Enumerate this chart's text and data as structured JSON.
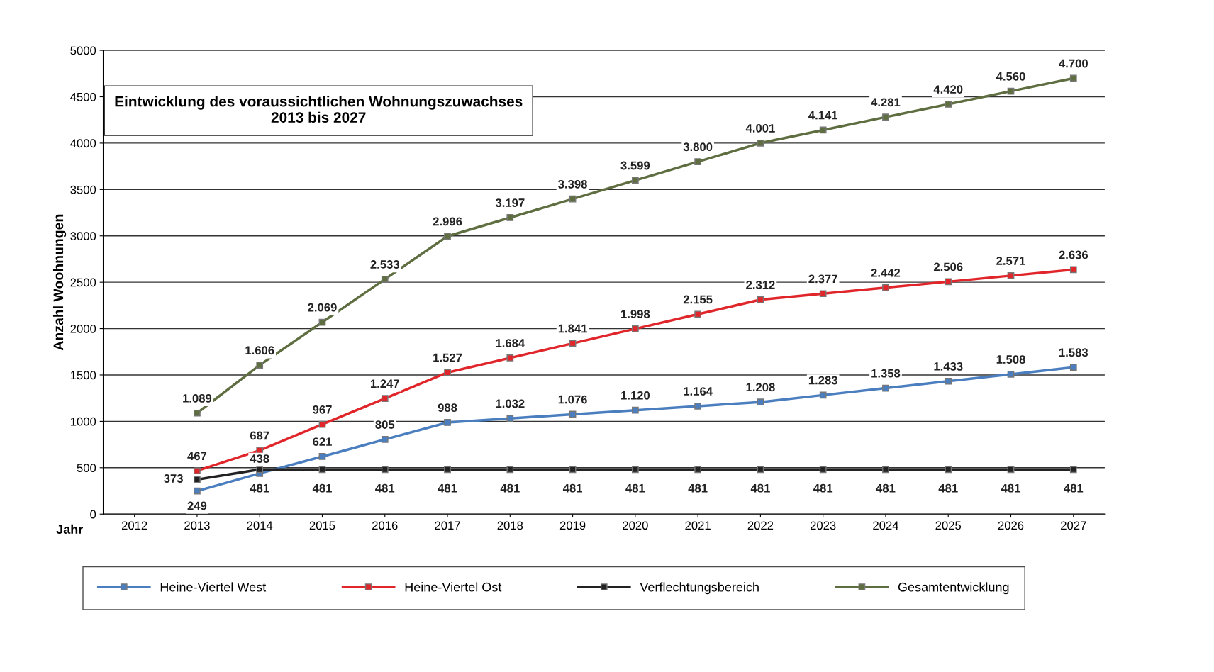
{
  "chart_data": {
    "type": "line",
    "title": "Eintwicklung des voraussichtlichen Wohnungszuwachses\n2013 bis 2027",
    "xlabel": "Jahr",
    "ylabel": "Anzahl Woohnungen",
    "categories": [
      "2012",
      "2013",
      "2014",
      "2015",
      "2016",
      "2017",
      "2018",
      "2019",
      "2020",
      "2021",
      "2022",
      "2023",
      "2024",
      "2025",
      "2026",
      "2027"
    ],
    "series": [
      {
        "name": "Heine-Viertel West",
        "color": "#4a7ebf",
        "values": [
          null,
          249,
          438,
          621,
          805,
          988,
          1032,
          1076,
          1120,
          1164,
          1208,
          1283,
          1358,
          1433,
          1508,
          1583
        ],
        "value_labels": [
          null,
          "249",
          "438",
          "621",
          "805",
          "988",
          "1.032",
          "1.076",
          "1.120",
          "1.164",
          "1.208",
          "1.283",
          "1.358",
          "1.433",
          "1.508",
          "1.583"
        ]
      },
      {
        "name": "Heine-Viertel Ost",
        "color": "#e0262a",
        "values": [
          null,
          467,
          687,
          967,
          1247,
          1527,
          1684,
          1841,
          1998,
          2155,
          2312,
          2377,
          2442,
          2506,
          2571,
          2636
        ],
        "value_labels": [
          null,
          "467",
          "687",
          "967",
          "1.247",
          "1.527",
          "1.684",
          "1.841",
          "1.998",
          "2.155",
          "2.312",
          "2.377",
          "2.442",
          "2.506",
          "2.571",
          "2.636"
        ]
      },
      {
        "name": "Verflechtungsbereich",
        "color": "#222222",
        "values": [
          null,
          373,
          481,
          481,
          481,
          481,
          481,
          481,
          481,
          481,
          481,
          481,
          481,
          481,
          481,
          481
        ],
        "value_labels": [
          null,
          "373",
          "481",
          "481",
          "481",
          "481",
          "481",
          "481",
          "481",
          "481",
          "481",
          "481",
          "481",
          "481",
          "481",
          "481"
        ]
      },
      {
        "name": "Gesamtentwicklung",
        "color": "#5f6e40",
        "values": [
          null,
          1089,
          1606,
          2069,
          2533,
          2996,
          3197,
          3398,
          3599,
          3800,
          4001,
          4141,
          4281,
          4420,
          4560,
          4700
        ],
        "value_labels": [
          null,
          "1.089",
          "1.606",
          "2.069",
          "2.533",
          "2.996",
          "3.197",
          "3.398",
          "3.599",
          "3.800",
          "4.001",
          "4.141",
          "4.281",
          "4.420",
          "4.560",
          "4.700"
        ]
      }
    ],
    "ylim": [
      0,
      5000
    ],
    "yticks": [
      0,
      500,
      1000,
      1500,
      2000,
      2500,
      3000,
      3500,
      4000,
      4500,
      5000
    ],
    "grid": "y",
    "legend": "bottom",
    "marker": "square",
    "line_style": "solid"
  }
}
